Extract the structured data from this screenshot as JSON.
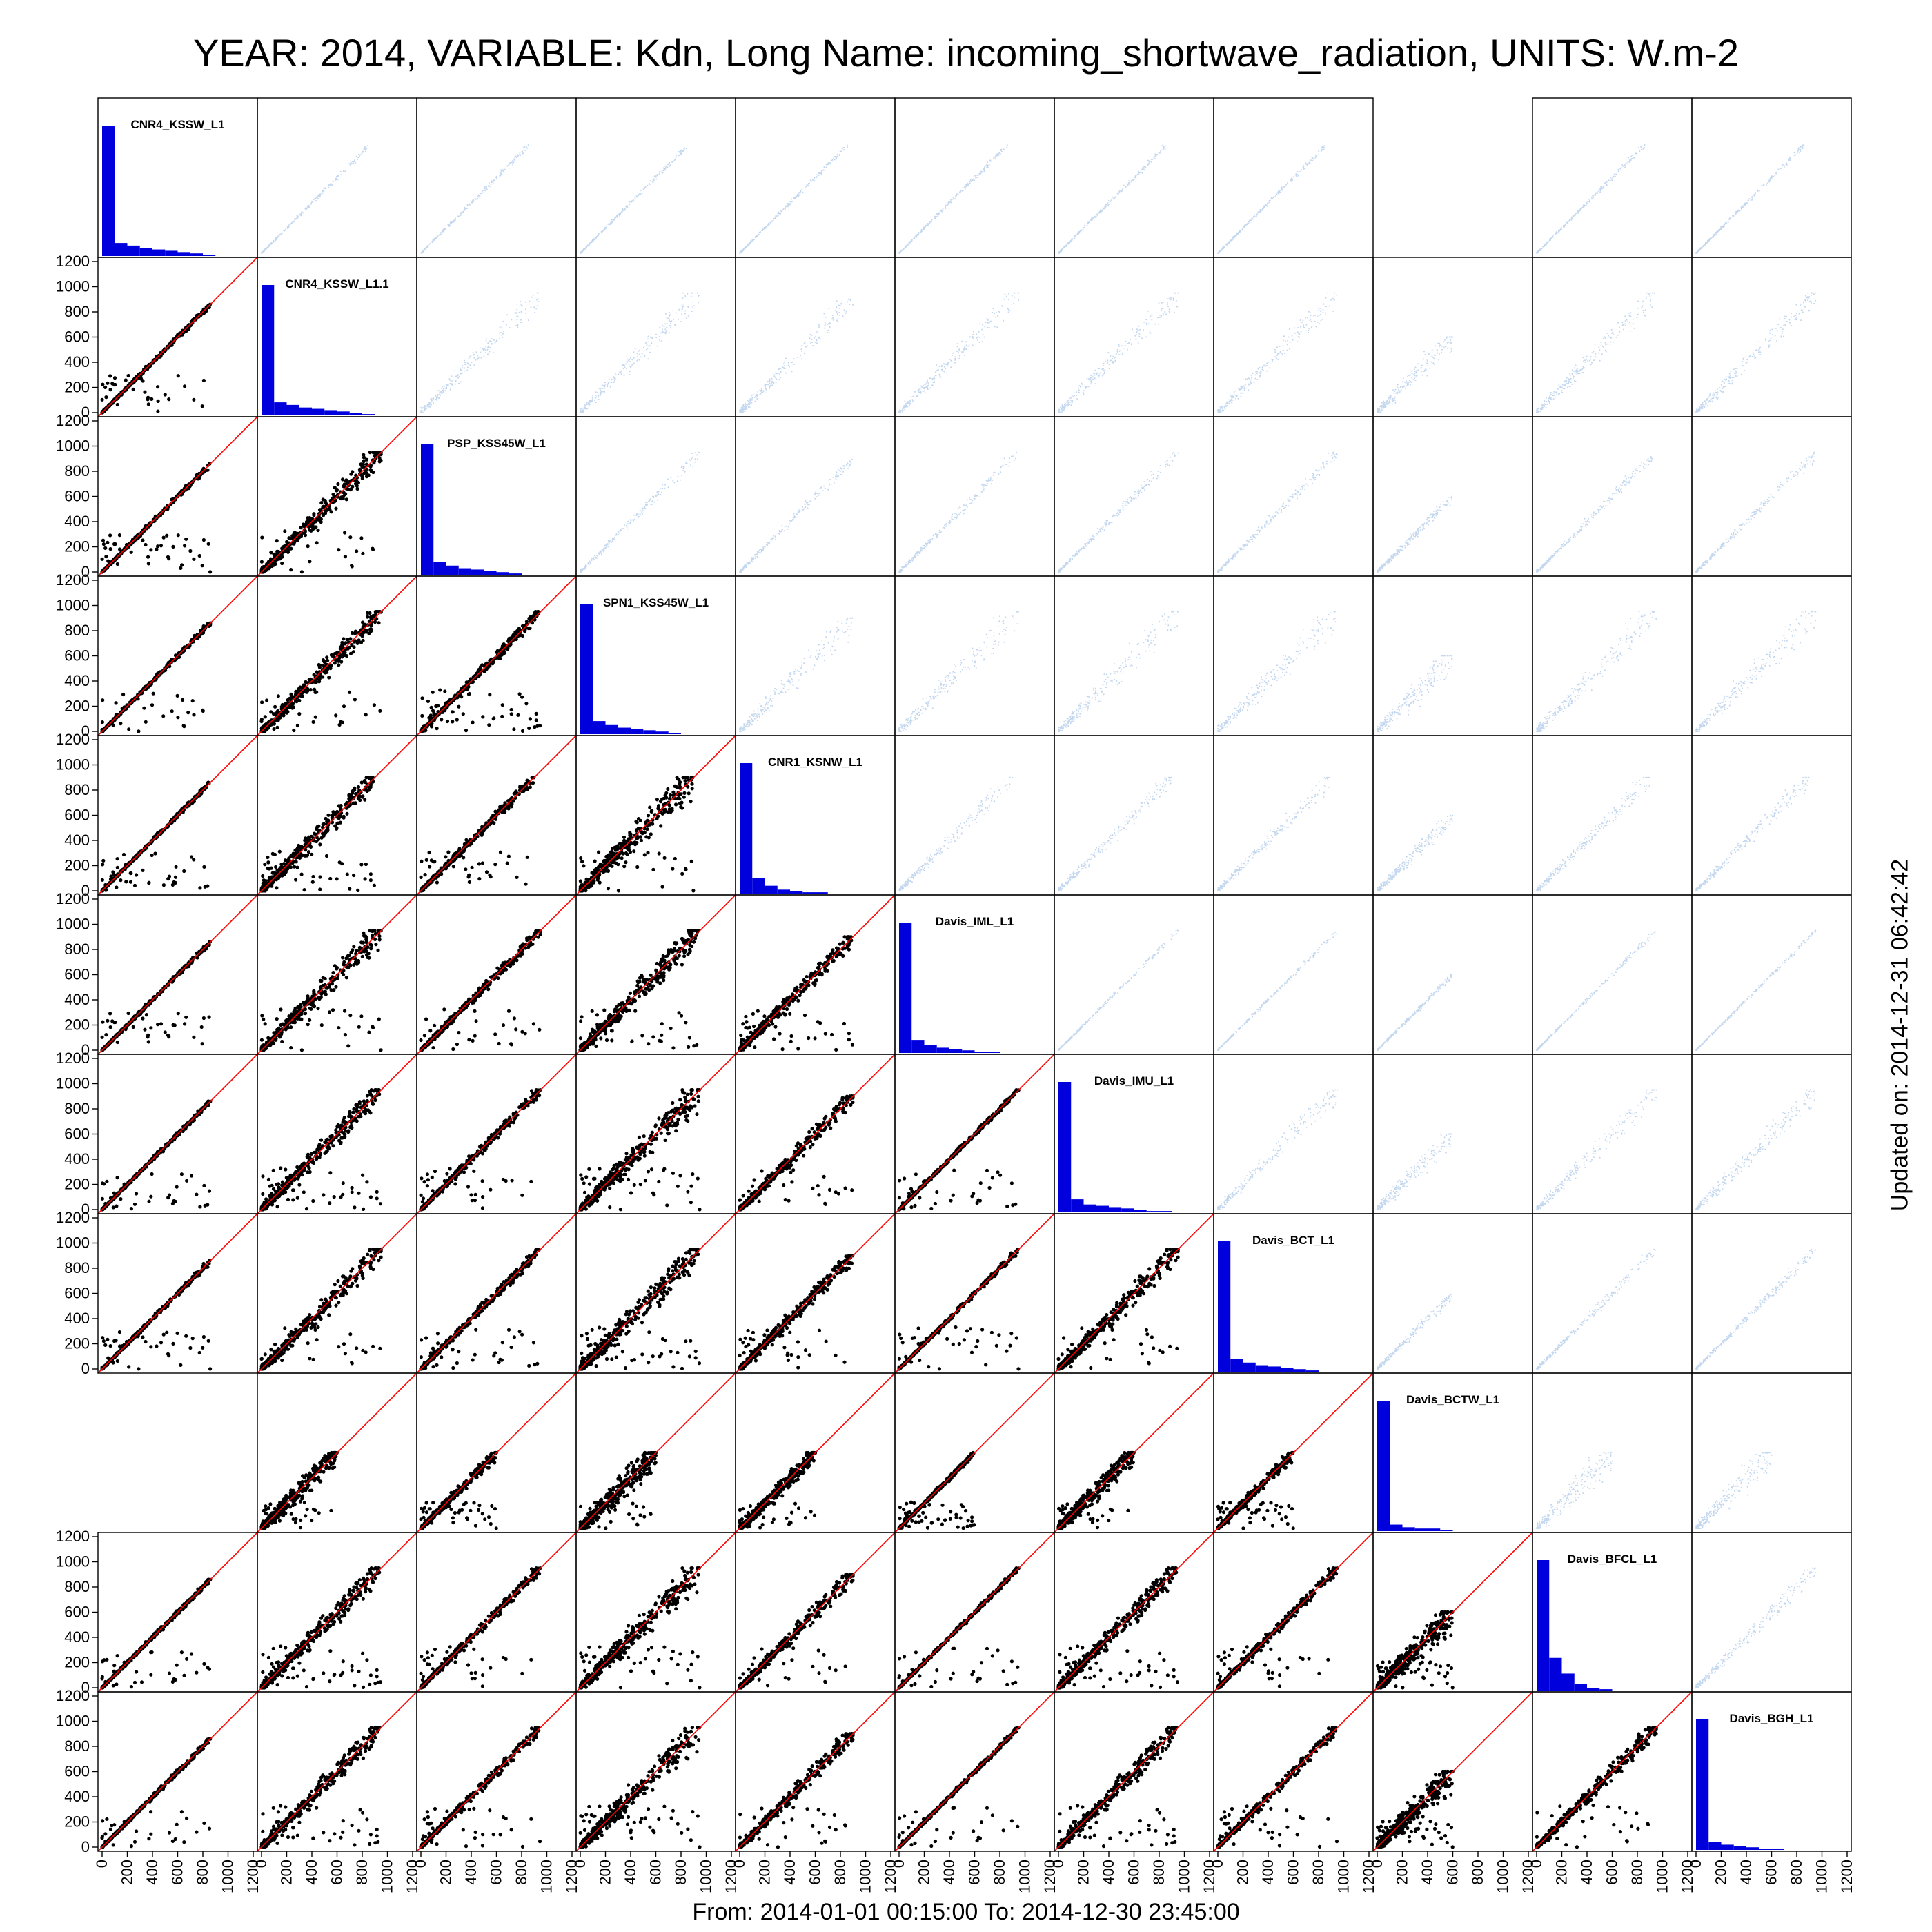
{
  "title": "YEAR: 2014, VARIABLE: Kdn, Long Name: incoming_shortwave_radiation, UNITS: W.m-2",
  "footer": "From: 2014-01-01 00:15:00 To: 2014-12-30 23:45:00",
  "updated": "Updated on: 2014-12-31 06:42:42",
  "colors": {
    "histogram": "#0000dd",
    "scatter_lower": "#000000",
    "scatter_upper": "#a9c6e8",
    "one_to_one_line": "#ff0000",
    "panel_border": "#000000"
  },
  "chart_data": {
    "type": "scatter",
    "subtype": "scatterplot-matrix",
    "variables": [
      "CNR4_KSSW_L1",
      "CNR4_KSSW_L1.1",
      "PSP_KSS45W_L1",
      "SPN1_KSS45W_L1",
      "CNR1_KSNW_L1",
      "Davis_IML_L1",
      "Davis_IMU_L1",
      "Davis_BCT_L1",
      "Davis_BCTW_L1",
      "Davis_BFCL_L1",
      "Davis_BGH_L1"
    ],
    "axis_range": [
      0,
      1200
    ],
    "ticks": [
      "0",
      "200",
      "400",
      "600",
      "800",
      "1000",
      "1200"
    ],
    "diagonal": "histogram",
    "lower_triangle": "scatter (black points) with 1:1 reference line",
    "upper_triangle": "density scatter (light blue)",
    "missing_pairs": [
      [
        8,
        0
      ],
      [
        0,
        8
      ]
    ],
    "histogram_bins": [
      0,
      100,
      200,
      300,
      400,
      500,
      600,
      700,
      800,
      900,
      1000,
      1100
    ],
    "histograms": [
      {
        "variable": "CNR4_KSSW_L1",
        "relative_counts": [
          1.0,
          0.1,
          0.08,
          0.06,
          0.05,
          0.04,
          0.03,
          0.02,
          0.01,
          0,
          0,
          0
        ]
      },
      {
        "variable": "CNR4_KSSW_L1.1",
        "relative_counts": [
          1.0,
          0.1,
          0.08,
          0.06,
          0.05,
          0.04,
          0.03,
          0.02,
          0.01,
          0,
          0,
          0
        ]
      },
      {
        "variable": "PSP_KSS45W_L1",
        "relative_counts": [
          1.0,
          0.1,
          0.07,
          0.05,
          0.04,
          0.03,
          0.02,
          0.01,
          0,
          0,
          0,
          0
        ]
      },
      {
        "variable": "SPN1_KSS45W_L1",
        "relative_counts": [
          1.0,
          0.1,
          0.07,
          0.05,
          0.04,
          0.03,
          0.02,
          0.01,
          0,
          0,
          0,
          0
        ]
      },
      {
        "variable": "CNR1_KSNW_L1",
        "relative_counts": [
          1.0,
          0.12,
          0.06,
          0.03,
          0.02,
          0.01,
          0.01,
          0,
          0,
          0,
          0,
          0
        ]
      },
      {
        "variable": "Davis_IML_L1",
        "relative_counts": [
          1.0,
          0.1,
          0.06,
          0.04,
          0.03,
          0.02,
          0.01,
          0.01,
          0,
          0,
          0,
          0
        ]
      },
      {
        "variable": "Davis_IMU_L1",
        "relative_counts": [
          1.0,
          0.1,
          0.06,
          0.05,
          0.04,
          0.03,
          0.02,
          0.01,
          0.01,
          0,
          0,
          0
        ]
      },
      {
        "variable": "Davis_BCT_L1",
        "relative_counts": [
          1.0,
          0.1,
          0.07,
          0.05,
          0.04,
          0.03,
          0.02,
          0.01,
          0,
          0,
          0,
          0
        ]
      },
      {
        "variable": "Davis_BCTW_L1",
        "relative_counts": [
          1.0,
          0.05,
          0.03,
          0.02,
          0.02,
          0.01,
          0,
          0,
          0,
          0,
          0,
          0
        ]
      },
      {
        "variable": "Davis_BFCL_L1",
        "relative_counts": [
          1.0,
          0.25,
          0.13,
          0.05,
          0.02,
          0.01,
          0,
          0,
          0,
          0,
          0,
          0
        ]
      },
      {
        "variable": "Davis_BGH_L1",
        "relative_counts": [
          1.0,
          0.06,
          0.04,
          0.03,
          0.02,
          0.01,
          0.01,
          0,
          0,
          0,
          0,
          0
        ]
      }
    ],
    "scatter_max": [
      860,
      950,
      950,
      950,
      900,
      950,
      950,
      950,
      600,
      950,
      950
    ]
  }
}
